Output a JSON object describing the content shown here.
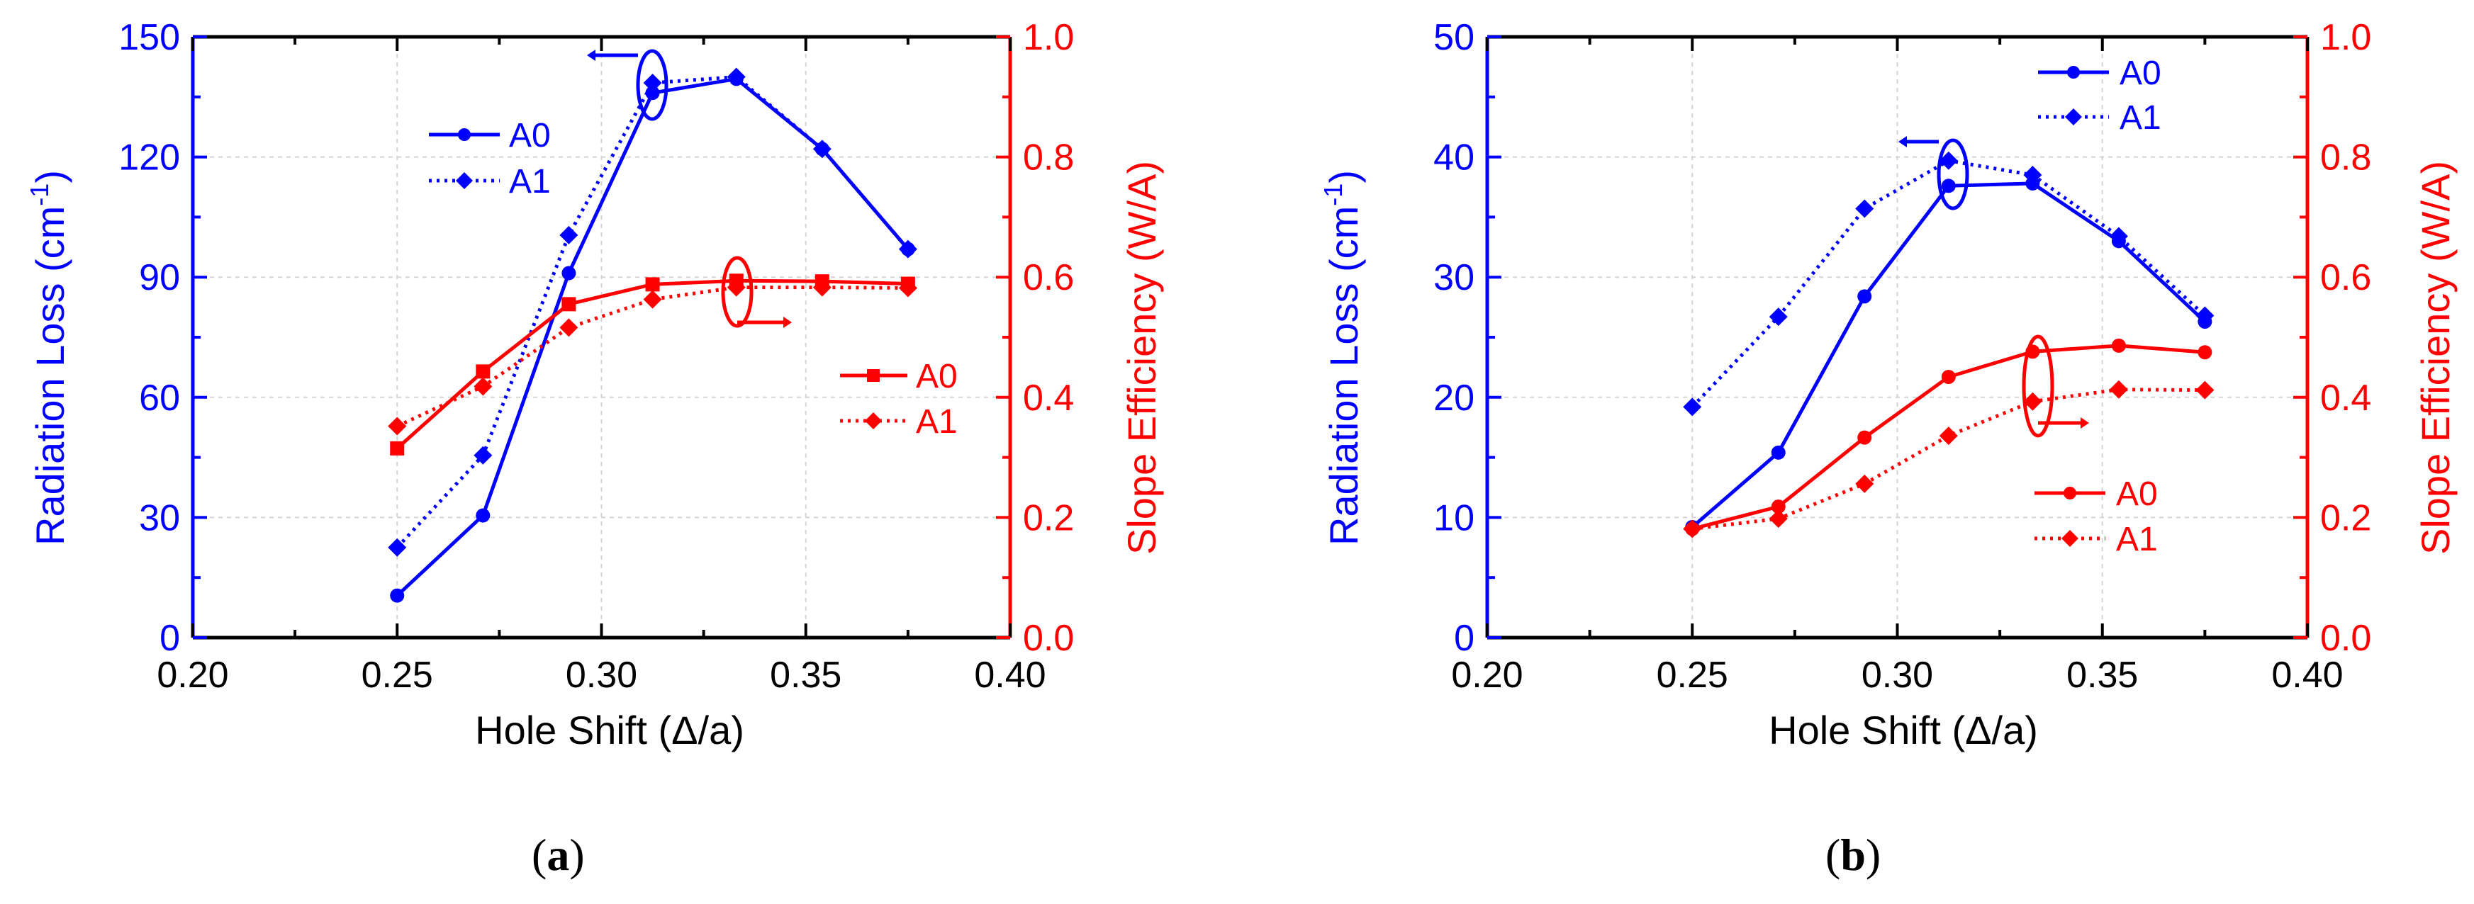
{
  "chart_data": [
    {
      "type": "line",
      "panel_label": "a",
      "xlabel": "Hole Shift (Δ/a)",
      "ylabel_left": "Radiation Loss (cm⁻¹)",
      "ylabel_left_parts": {
        "base": "Radiation Loss (cm",
        "sup": "-1",
        "close": ")"
      },
      "ylabel_right": "Slope Efficiency (W/A)",
      "xlim": [
        0.2,
        0.4
      ],
      "xticks": [
        "0.20",
        "0.25",
        "0.30",
        "0.35",
        "0.40"
      ],
      "ylim_left": [
        0,
        150
      ],
      "yticks_left": [
        "0",
        "30",
        "60",
        "90",
        "120",
        "150"
      ],
      "ylim_right": [
        0.0,
        1.0
      ],
      "yticks_right": [
        "0.0",
        "0.2",
        "0.4",
        "0.6",
        "0.8",
        "1.0"
      ],
      "grid": true,
      "x": [
        0.25,
        0.271,
        0.292,
        0.3125,
        0.333,
        0.354,
        0.375
      ],
      "series": [
        {
          "name": "A0",
          "axis": "left",
          "color": "#0000ff",
          "style": "solid",
          "marker": "circle",
          "values": [
            10.5,
            30.5,
            91,
            136,
            139.5,
            122,
            97
          ]
        },
        {
          "name": "A1",
          "axis": "left",
          "color": "#0000ff",
          "style": "dotted",
          "marker": "diamond",
          "values": [
            22.5,
            45.5,
            100.5,
            138.5,
            140,
            122,
            97
          ]
        },
        {
          "name": "A0",
          "axis": "right",
          "color": "#ff0000",
          "style": "solid",
          "marker": "square",
          "values": [
            0.315,
            0.443,
            0.555,
            0.588,
            0.594,
            0.593,
            0.589
          ]
        },
        {
          "name": "A1",
          "axis": "right",
          "color": "#ff0000",
          "style": "dotted",
          "marker": "diamond",
          "values": [
            0.352,
            0.418,
            0.516,
            0.563,
            0.583,
            0.583,
            0.582
          ]
        }
      ],
      "legend_left": [
        "A0",
        "A1"
      ],
      "legend_right": [
        "A0",
        "A1"
      ]
    },
    {
      "type": "line",
      "panel_label": "b",
      "xlabel": "Hole Shift (Δ/a)",
      "ylabel_left": "Radiation Loss (cm⁻¹)",
      "ylabel_left_parts": {
        "base": "Radiation Loss (cm",
        "sup": "-1",
        "close": ")"
      },
      "ylabel_right": "Slope Efficiency (W/A)",
      "xlim": [
        0.2,
        0.4
      ],
      "xticks": [
        "0.20",
        "0.25",
        "0.30",
        "0.35",
        "0.40"
      ],
      "ylim_left": [
        0,
        50
      ],
      "yticks_left": [
        "0",
        "10",
        "20",
        "30",
        "40",
        "50"
      ],
      "ylim_right": [
        0.0,
        1.0
      ],
      "yticks_right": [
        "0.0",
        "0.2",
        "0.4",
        "0.6",
        "0.8",
        "1.0"
      ],
      "grid": true,
      "x": [
        0.25,
        0.271,
        0.292,
        0.3125,
        0.333,
        0.354,
        0.375
      ],
      "series": [
        {
          "name": "A0",
          "axis": "left",
          "color": "#0000ff",
          "style": "solid",
          "marker": "circle",
          "values": [
            9.2,
            15.4,
            28.4,
            37.6,
            37.8,
            33,
            26.3
          ]
        },
        {
          "name": "A1",
          "axis": "left",
          "color": "#0000ff",
          "style": "dotted",
          "marker": "diamond",
          "values": [
            19.2,
            26.7,
            35.7,
            39.7,
            38.5,
            33.4,
            26.8
          ]
        },
        {
          "name": "A0",
          "axis": "right",
          "color": "#ff0000",
          "style": "solid",
          "marker": "circle",
          "values": [
            0.181,
            0.218,
            0.333,
            0.434,
            0.476,
            0.486,
            0.475
          ]
        },
        {
          "name": "A1",
          "axis": "right",
          "color": "#ff0000",
          "style": "dotted",
          "marker": "diamond",
          "values": [
            0.181,
            0.198,
            0.256,
            0.336,
            0.393,
            0.413,
            0.412
          ]
        }
      ],
      "legend_left": [
        "A0",
        "A1"
      ],
      "legend_right": [
        "A0",
        "A1"
      ]
    }
  ]
}
